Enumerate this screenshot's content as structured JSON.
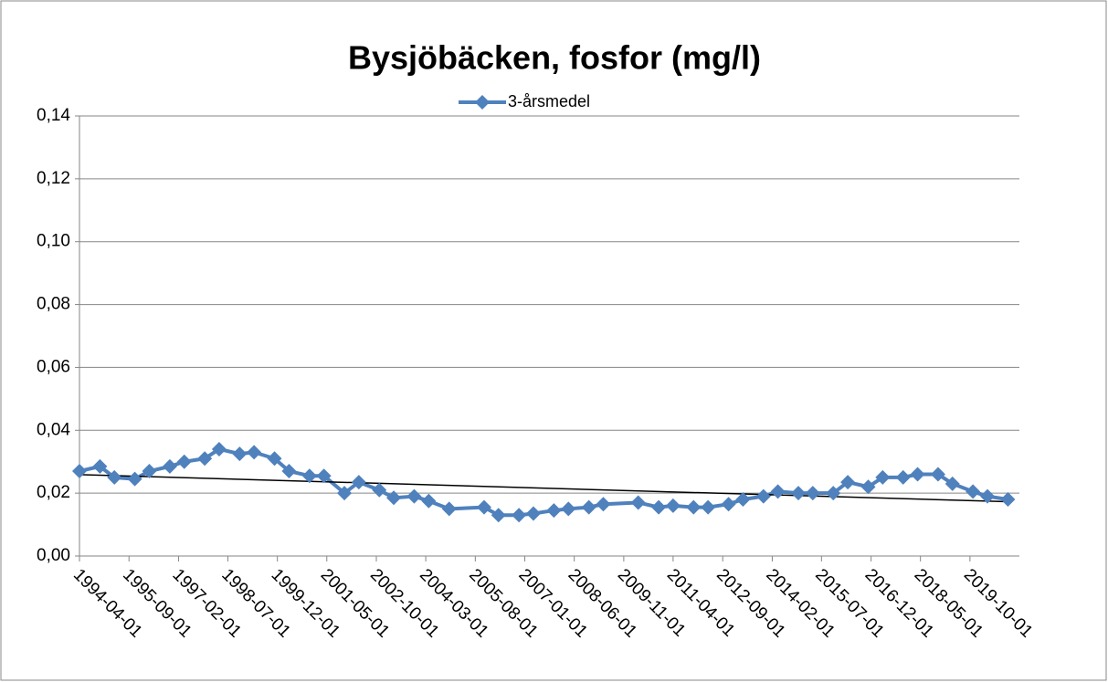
{
  "chart_data": {
    "type": "line",
    "title": "Bysjöbäcken, fosfor (mg/l)",
    "x": [
      "1994-04-01",
      "1994-11-01",
      "1995-04-01",
      "1995-11-01",
      "1996-04-01",
      "1996-11-01",
      "1997-04-01",
      "1997-11-01",
      "1998-04-01",
      "1998-11-01",
      "1999-04-01",
      "1999-11-01",
      "2000-04-01",
      "2000-11-01",
      "2001-04-01",
      "2001-11-01",
      "2002-04-01",
      "2002-11-01",
      "2003-04-01",
      "2003-11-01",
      "2004-04-01",
      "2004-11-01",
      "2005-11-01",
      "2006-04-01",
      "2006-11-01",
      "2007-04-01",
      "2007-11-01",
      "2008-04-01",
      "2008-11-01",
      "2009-04-01",
      "2010-04-01",
      "2010-11-01",
      "2011-04-01",
      "2011-11-01",
      "2012-04-01",
      "2012-11-01",
      "2013-04-01",
      "2013-11-01",
      "2014-04-01",
      "2014-11-01",
      "2015-04-01",
      "2015-11-01",
      "2016-04-01",
      "2016-11-01",
      "2017-04-01",
      "2017-11-01",
      "2018-04-01",
      "2018-11-01",
      "2019-04-01",
      "2019-11-01",
      "2020-04-01",
      "2020-11-01"
    ],
    "series": [
      {
        "name": "3-årsmedel",
        "color": "#4f81bd",
        "values": [
          0.027,
          0.0285,
          0.025,
          0.0245,
          0.027,
          0.0285,
          0.03,
          0.031,
          0.034,
          0.0325,
          0.033,
          0.031,
          0.027,
          0.0255,
          0.0255,
          0.02,
          0.0235,
          0.021,
          0.0185,
          0.019,
          0.0175,
          0.015,
          0.0155,
          0.013,
          0.013,
          0.0135,
          0.0145,
          0.015,
          0.0155,
          0.0165,
          0.017,
          0.0155,
          0.016,
          0.0155,
          0.0155,
          0.0165,
          0.018,
          0.019,
          0.0205,
          0.02,
          0.02,
          0.02,
          0.0235,
          0.022,
          0.025,
          0.025,
          0.026,
          0.026,
          0.023,
          0.0205,
          0.019,
          0.018
        ]
      }
    ],
    "trendline": true,
    "trendline_color": "#000000",
    "xlim": [
      "1994-04-01",
      "2021-03-01"
    ],
    "xticks": [
      "1994-04-01",
      "1995-09-01",
      "1997-02-01",
      "1998-07-01",
      "1999-12-01",
      "2001-05-01",
      "2002-10-01",
      "2004-03-01",
      "2005-08-01",
      "2007-01-01",
      "2008-06-01",
      "2009-11-01",
      "2011-04-01",
      "2012-09-01",
      "2014-02-01",
      "2015-07-01",
      "2016-12-01",
      "2018-05-01",
      "2019-10-01"
    ],
    "ylim": [
      0,
      0.14
    ],
    "yticks": [
      {
        "value": 0,
        "label": "0,00"
      },
      {
        "value": 0.02,
        "label": "0,02"
      },
      {
        "value": 0.04,
        "label": "0,04"
      },
      {
        "value": 0.06,
        "label": "0,06"
      },
      {
        "value": 0.08,
        "label": "0,08"
      },
      {
        "value": 0.1,
        "label": "0,10"
      },
      {
        "value": 0.12,
        "label": "0,12"
      },
      {
        "value": 0.14,
        "label": "0,14"
      }
    ],
    "grid": true,
    "legend": "top"
  }
}
